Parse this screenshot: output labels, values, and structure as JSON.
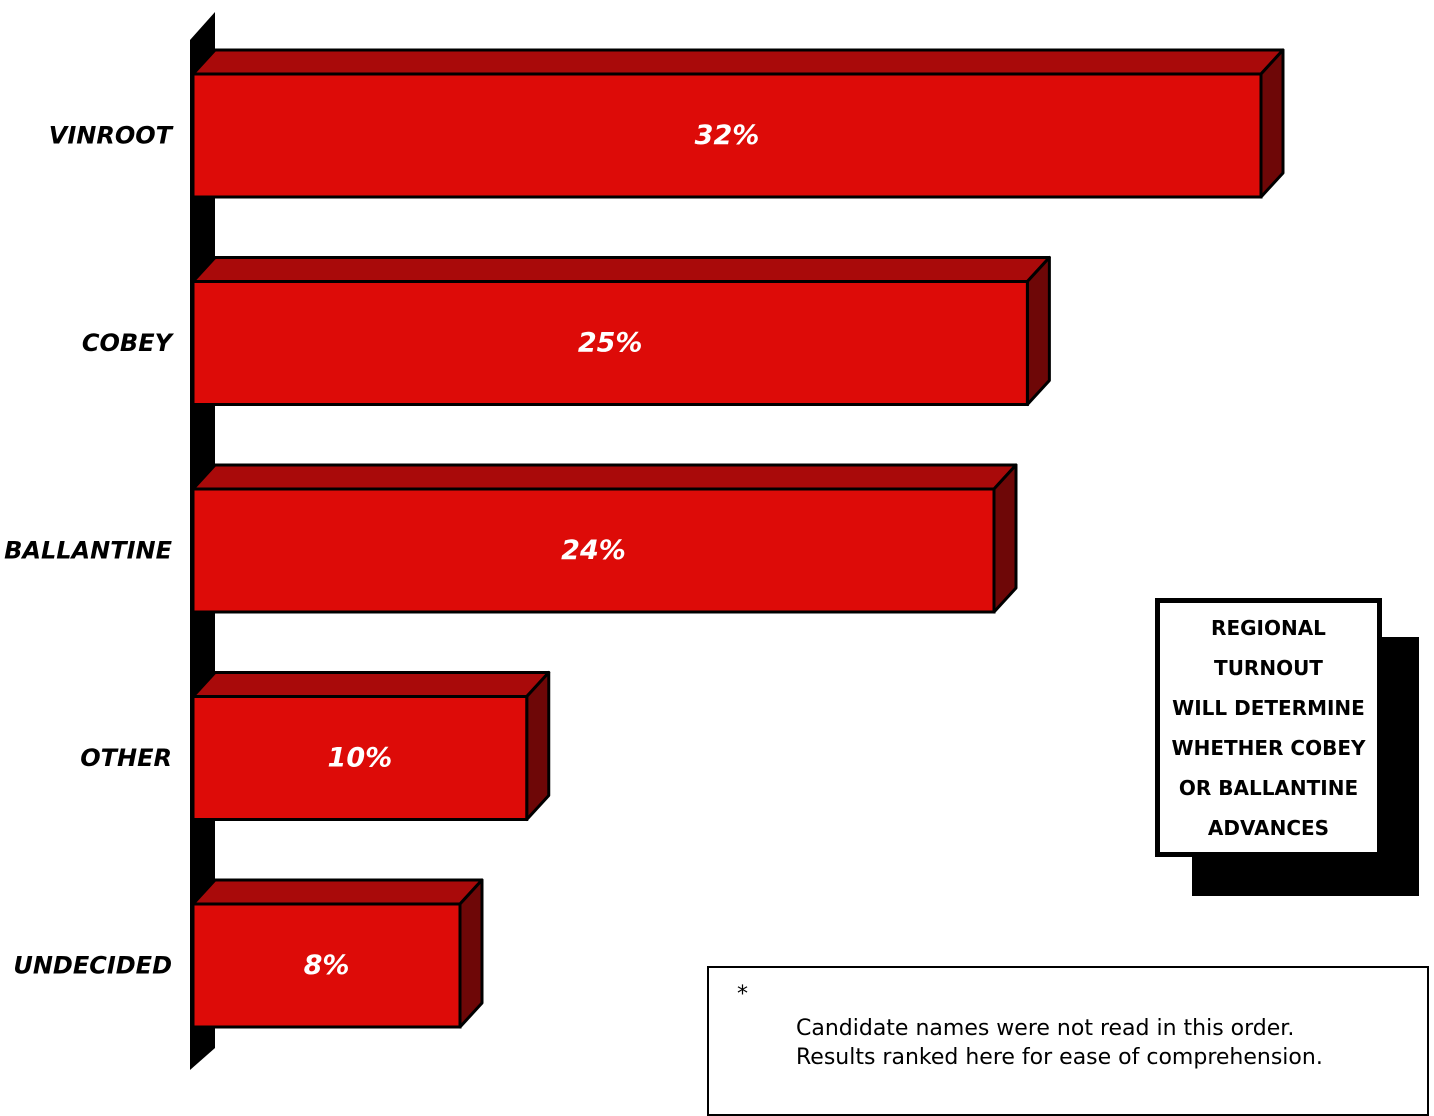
{
  "chart_data": {
    "type": "bar",
    "orientation": "horizontal",
    "style": "3d",
    "categories": [
      "VINROOT",
      "COBEY",
      "BALLANTINE",
      "OTHER",
      "UNDECIDED"
    ],
    "values": [
      32,
      25,
      24,
      10,
      8
    ],
    "value_labels": [
      "32%",
      "25%",
      "24%",
      "10%",
      "8%"
    ],
    "unit": "%",
    "xlim": [
      0,
      32
    ],
    "grid": false,
    "legend": "none",
    "title": "",
    "xlabel": "",
    "ylabel": ""
  },
  "callout": {
    "lines": [
      "REGIONAL",
      "TURNOUT",
      "WILL DETERMINE",
      "WHETHER COBEY",
      "OR BALLANTINE",
      "ADVANCES"
    ]
  },
  "footnote": {
    "marker": "*",
    "lines": [
      "Candidate names were not read in this order.",
      "Results ranked here for ease of comprehension."
    ]
  },
  "colors": {
    "bar_front": "#dd0b08",
    "bar_top": "#a90a0a",
    "bar_side": "#6e0707",
    "axis_wall": "#000000",
    "label_text": "#000000",
    "value_text": "#ffffff"
  }
}
